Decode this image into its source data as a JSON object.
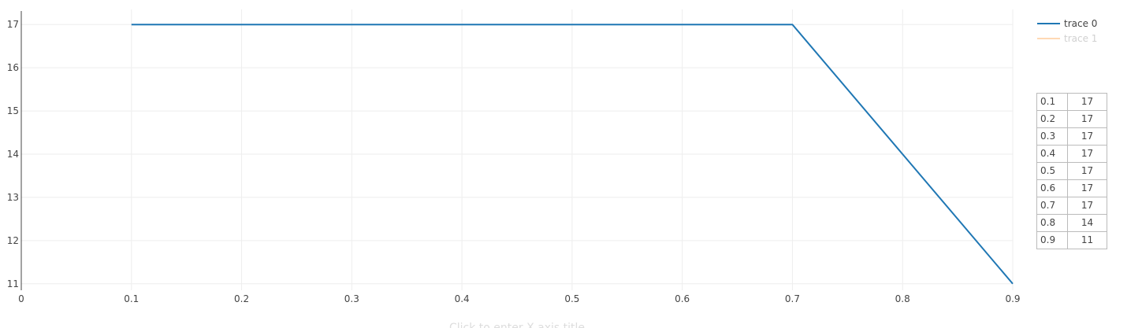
{
  "chart_data": {
    "type": "line",
    "title": "",
    "xlabel": "Click to enter X axis title",
    "ylabel": "",
    "xlim": [
      0,
      0.9
    ],
    "ylim": [
      10.85,
      17.35
    ],
    "x_ticks": [
      "0",
      "0.1",
      "0.2",
      "0.3",
      "0.4",
      "0.5",
      "0.6",
      "0.7",
      "0.8",
      "0.9"
    ],
    "y_ticks": [
      "11",
      "12",
      "13",
      "14",
      "15",
      "16",
      "17"
    ],
    "grid": true,
    "legend_position": "top-right",
    "series": [
      {
        "name": "trace 0",
        "color": "#1f77b4",
        "x": [
          0.1,
          0.2,
          0.3,
          0.4,
          0.5,
          0.6,
          0.7,
          0.8,
          0.9
        ],
        "y": [
          17,
          17,
          17,
          17,
          17,
          17,
          17,
          14,
          11
        ]
      },
      {
        "name": "trace 1",
        "color": "#ffbb78",
        "x": [],
        "y": []
      }
    ],
    "table": {
      "rows": [
        [
          "0.1",
          "17"
        ],
        [
          "0.2",
          "17"
        ],
        [
          "0.3",
          "17"
        ],
        [
          "0.4",
          "17"
        ],
        [
          "0.5",
          "17"
        ],
        [
          "0.6",
          "17"
        ],
        [
          "0.7",
          "17"
        ],
        [
          "0.8",
          "14"
        ],
        [
          "0.9",
          "11"
        ]
      ]
    }
  }
}
